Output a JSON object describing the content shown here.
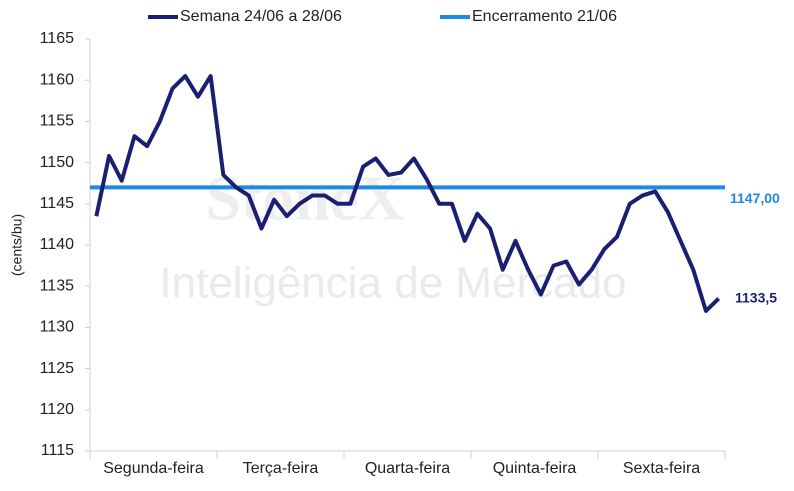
{
  "chart_data": {
    "type": "line",
    "watermark": [
      "StoneX",
      "Inteligência de Mercado"
    ],
    "y_label": "(cents/bu)",
    "categories": [
      null,
      null,
      null,
      null,
      "Segunda-feira",
      null,
      null,
      null,
      null,
      null,
      null,
      null,
      null,
      null,
      "Terça-feira",
      null,
      null,
      null,
      null,
      null,
      null,
      null,
      null,
      null,
      "Quarta-feira",
      null,
      null,
      null,
      null,
      null,
      null,
      null,
      null,
      null,
      "Quinta-feira",
      null,
      null,
      null,
      null,
      null,
      null,
      null,
      null,
      null,
      "Sexta-feira",
      null,
      null,
      null,
      null,
      null
    ],
    "series": [
      {
        "name": "Semana 24/06 a 28/06",
        "color": "#1a1f71",
        "values": [
          1143.5,
          1150.8,
          1147.8,
          1153.2,
          1152,
          1155,
          1159,
          1160.5,
          1158,
          1160.5,
          1148.5,
          1147,
          1146,
          1142,
          1145.5,
          1143.5,
          1145,
          1146,
          1146,
          1145,
          1145,
          1149.5,
          1150.5,
          1148.5,
          1148.8,
          1150.5,
          1148,
          1145,
          1145,
          1140.5,
          1143.8,
          1142,
          1137,
          1140.5,
          1137,
          1134,
          1137.5,
          1138,
          1135.2,
          1137,
          1139.5,
          1141,
          1145,
          1146,
          1146.5,
          1144,
          1140.5,
          1137,
          1132,
          1133.5
        ],
        "end_label": "1133,5"
      }
    ],
    "reference": {
      "name": "Encerramento 21/06",
      "color": "#1e88e5",
      "value": 1147,
      "label": "1147,00"
    },
    "ylim": [
      1115,
      1165
    ],
    "yticks": [
      1115,
      1120,
      1125,
      1130,
      1135,
      1140,
      1145,
      1150,
      1155,
      1160,
      1165
    ],
    "legend": "top"
  }
}
